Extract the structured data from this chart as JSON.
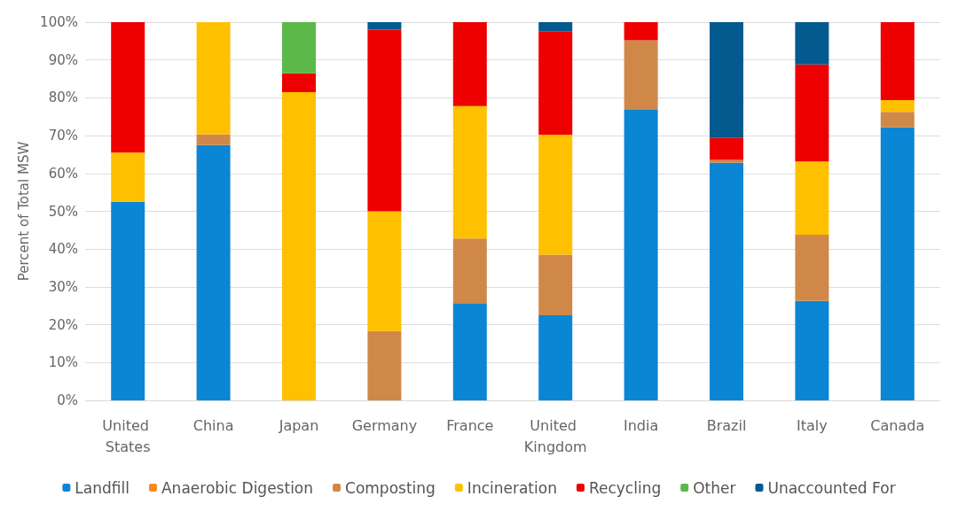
{
  "chart_data": {
    "type": "bar",
    "stacked": true,
    "ylabel": "Percent of Total MSW",
    "categories": [
      "United States",
      "China",
      "Japan",
      "Germany",
      "France",
      "United Kingdom",
      "India",
      "Brazil",
      "Italy",
      "Canada"
    ],
    "series": [
      {
        "name": "Landfill",
        "color": "#0a86d4",
        "values": [
          52.5,
          67.5,
          0,
          0,
          25.7,
          22.5,
          76.8,
          62.8,
          26.3,
          72.2
        ]
      },
      {
        "name": "Anaerobic Digestion",
        "color": "#f58a1f",
        "values": [
          0,
          0,
          0,
          0,
          0,
          0,
          0,
          0,
          0,
          0
        ]
      },
      {
        "name": "Composting",
        "color": "#d08848",
        "values": [
          0,
          2.8,
          0,
          18.3,
          17.1,
          16,
          18.4,
          0.8,
          17.5,
          4.1
        ]
      },
      {
        "name": "Incineration",
        "color": "#ffc000",
        "values": [
          13,
          29.7,
          81.5,
          31.7,
          35,
          31.7,
          0,
          0,
          19.4,
          3.1
        ]
      },
      {
        "name": "Recycling",
        "color": "#ee0000",
        "values": [
          34.5,
          0,
          5,
          48,
          22.2,
          27.4,
          4.8,
          5.8,
          25.6,
          20.6
        ]
      },
      {
        "name": "Other",
        "color": "#5cb848",
        "values": [
          0,
          0,
          13.5,
          0,
          0,
          0,
          0,
          0,
          0,
          0
        ]
      },
      {
        "name": "Unaccounted For",
        "color": "#035a8f",
        "values": [
          0,
          0,
          0,
          2,
          0,
          2.4,
          0,
          30.6,
          11.2,
          0
        ]
      }
    ],
    "ylim": [
      0,
      100
    ],
    "yticks": [
      {
        "value": 0,
        "label": "0%"
      },
      {
        "value": 10,
        "label": "10%"
      },
      {
        "value": 20,
        "label": "20%"
      },
      {
        "value": 30,
        "label": "30%"
      },
      {
        "value": 40,
        "label": "40%"
      },
      {
        "value": 50,
        "label": "50%"
      },
      {
        "value": 60,
        "label": "60%"
      },
      {
        "value": 70,
        "label": "70%"
      },
      {
        "value": 80,
        "label": "80%"
      },
      {
        "value": 90,
        "label": "90%"
      },
      {
        "value": 100,
        "label": "100%"
      }
    ],
    "grid": "y",
    "legend": "bottom"
  }
}
